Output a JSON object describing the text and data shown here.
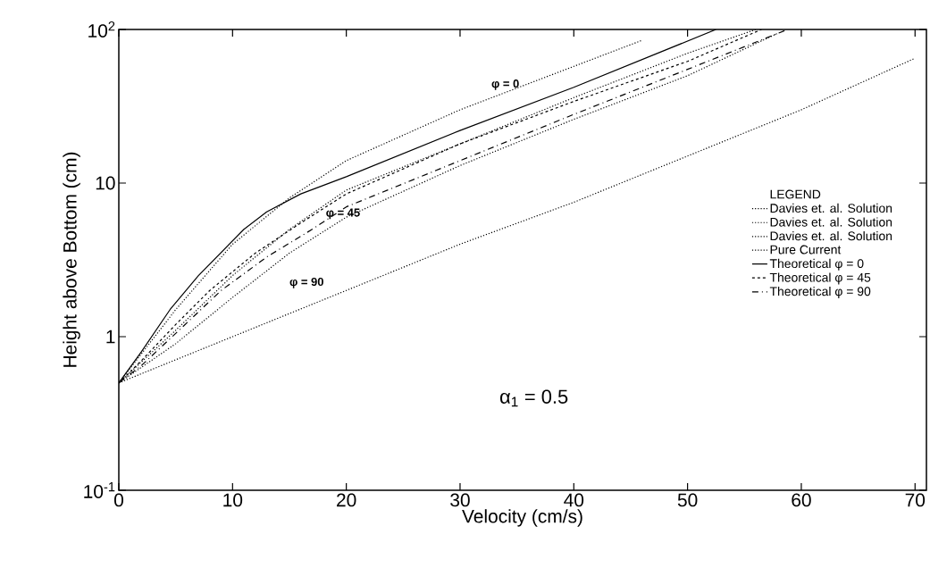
{
  "chart_data": {
    "type": "line",
    "xlabel": "Velocity  (cm/s)",
    "ylabel": "Height above Bottom  (cm)",
    "legend_title": "LEGEND",
    "log": "y",
    "grid": false,
    "legend": "right",
    "xlim": [
      0,
      71
    ],
    "xticks": [
      0,
      10,
      20,
      30,
      40,
      50,
      60,
      70
    ],
    "ylim": [
      0.1,
      100
    ],
    "yticks": [
      {
        "value": 0.1,
        "label": "10$^{-1}$"
      },
      1,
      10,
      {
        "value": 100,
        "label": "10$^{2}$"
      }
    ],
    "annotations": [
      "φ = 0",
      "φ = 45",
      "φ = 90",
      "α$_{1}$ = 0.5"
    ],
    "series": [
      {
        "name": "Davies et. al. Solution",
        "color": "#000000",
        "line_style": "dotted",
        "x": [
          0,
          5,
          10,
          15,
          20,
          30,
          46
        ],
        "values": [
          0.5,
          1.5,
          4,
          8,
          14,
          30,
          85
        ]
      },
      {
        "name": "Davies et. al. Solution",
        "color": "#000000",
        "line_style": "dotted",
        "x": [
          0,
          5,
          10,
          15,
          20,
          30,
          40,
          50,
          56
        ],
        "values": [
          0.5,
          1.1,
          2.5,
          5,
          9,
          18,
          36,
          70,
          100
        ]
      },
      {
        "name": "Davies et. al. Solution",
        "color": "#000000",
        "line_style": "dotted",
        "x": [
          0,
          5,
          10,
          15,
          20,
          30,
          40,
          50,
          58
        ],
        "values": [
          0.5,
          0.9,
          1.8,
          3.5,
          6,
          13,
          26,
          50,
          95
        ]
      },
      {
        "name": "Pure Current",
        "color": "#000000",
        "line_style": "dotted",
        "x": [
          0,
          10,
          20,
          30,
          40,
          50,
          60,
          70
        ],
        "values": [
          0.5,
          1,
          2,
          4,
          7.5,
          15,
          30,
          65
        ]
      },
      {
        "name": "Theoretical φ = 0",
        "color": "#000000",
        "line_style": "solid",
        "x": [
          0,
          2,
          4.5,
          7,
          11,
          13,
          16,
          20,
          30,
          40,
          52.5
        ],
        "values": [
          0.5,
          0.8,
          1.5,
          2.5,
          5,
          6.5,
          8.5,
          11,
          22,
          42,
          100
        ]
      },
      {
        "name": "Theoretical φ = 45",
        "color": "#000000",
        "line_style": "dashed",
        "x": [
          0,
          2,
          5,
          8,
          12,
          16,
          20,
          30,
          40,
          50,
          56.5
        ],
        "values": [
          0.5,
          0.7,
          1.2,
          2,
          3.5,
          5.5,
          8.5,
          18,
          34,
          62,
          100
        ]
      },
      {
        "name": "Theoretical φ = 90",
        "color": "#000000",
        "line_style": "dashed",
        "x": [
          0,
          2,
          5,
          9,
          13,
          17,
          20,
          30,
          40,
          50,
          58.8
        ],
        "values": [
          0.5,
          0.65,
          1.05,
          2,
          3.3,
          5,
          7,
          14,
          28,
          55,
          100
        ]
      }
    ]
  }
}
